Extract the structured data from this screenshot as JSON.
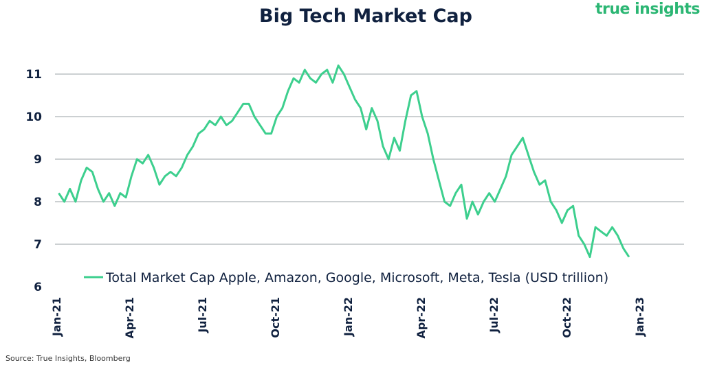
{
  "header": {
    "title": "Big Tech Market Cap",
    "logo_text": "true insights"
  },
  "footer": {
    "source": "Source: True Insights, Bloomberg"
  },
  "colors": {
    "line": "#3dcf8e",
    "grid": "#9aa0a6",
    "text": "#10213f",
    "logo": "#2bb673"
  },
  "chart_data": {
    "type": "line",
    "title": "Big Tech Market Cap",
    "xlabel": "",
    "ylabel": "",
    "ylim": [
      6,
      11.5
    ],
    "yticks": [
      6,
      7,
      8,
      9,
      10,
      11
    ],
    "xticks": [
      "Jan-21",
      "Apr-21",
      "Jul-21",
      "Oct-21",
      "Jan-22",
      "Apr-22",
      "Jul-22",
      "Oct-22",
      "Jan-23"
    ],
    "grid": "horizontal",
    "legend_position": "bottom-center",
    "series": [
      {
        "name": "Total Market Cap Apple, Amazon, Google, Microsoft, Meta, Tesla (USD trillion)",
        "x": [
          "2021-01-04",
          "2021-01-11",
          "2021-01-18",
          "2021-01-25",
          "2021-02-01",
          "2021-02-08",
          "2021-02-15",
          "2021-02-22",
          "2021-03-01",
          "2021-03-08",
          "2021-03-15",
          "2021-03-22",
          "2021-03-29",
          "2021-04-05",
          "2021-04-12",
          "2021-04-19",
          "2021-04-26",
          "2021-05-03",
          "2021-05-10",
          "2021-05-17",
          "2021-05-24",
          "2021-05-31",
          "2021-06-07",
          "2021-06-14",
          "2021-06-21",
          "2021-06-28",
          "2021-07-05",
          "2021-07-12",
          "2021-07-19",
          "2021-07-26",
          "2021-08-02",
          "2021-08-09",
          "2021-08-16",
          "2021-08-23",
          "2021-08-30",
          "2021-09-06",
          "2021-09-13",
          "2021-09-20",
          "2021-09-27",
          "2021-10-04",
          "2021-10-11",
          "2021-10-18",
          "2021-10-25",
          "2021-11-01",
          "2021-11-08",
          "2021-11-15",
          "2021-11-22",
          "2021-11-29",
          "2021-12-06",
          "2021-12-13",
          "2021-12-20",
          "2021-12-27",
          "2022-01-03",
          "2022-01-10",
          "2022-01-17",
          "2022-01-24",
          "2022-01-31",
          "2022-02-07",
          "2022-02-14",
          "2022-02-21",
          "2022-02-28",
          "2022-03-07",
          "2022-03-14",
          "2022-03-21",
          "2022-03-28",
          "2022-04-04",
          "2022-04-11",
          "2022-04-18",
          "2022-04-25",
          "2022-05-02",
          "2022-05-09",
          "2022-05-16",
          "2022-05-23",
          "2022-05-30",
          "2022-06-06",
          "2022-06-13",
          "2022-06-20",
          "2022-06-27",
          "2022-07-04",
          "2022-07-11",
          "2022-07-18",
          "2022-07-25",
          "2022-08-01",
          "2022-08-08",
          "2022-08-15",
          "2022-08-22",
          "2022-08-29",
          "2022-09-05",
          "2022-09-12",
          "2022-09-19",
          "2022-09-26",
          "2022-10-03",
          "2022-10-10",
          "2022-10-17",
          "2022-10-24",
          "2022-10-31",
          "2022-11-07",
          "2022-11-14",
          "2022-11-21",
          "2022-11-28",
          "2022-12-05",
          "2022-12-12",
          "2022-12-19"
        ],
        "values": [
          8.2,
          8.0,
          8.3,
          8.0,
          8.5,
          8.8,
          8.7,
          8.3,
          8.0,
          8.2,
          7.9,
          8.2,
          8.1,
          8.6,
          9.0,
          8.9,
          9.1,
          8.8,
          8.4,
          8.6,
          8.7,
          8.6,
          8.8,
          9.1,
          9.3,
          9.6,
          9.7,
          9.9,
          9.8,
          10.0,
          9.8,
          9.9,
          10.1,
          10.3,
          10.3,
          10.0,
          9.8,
          9.6,
          9.6,
          10.0,
          10.2,
          10.6,
          10.9,
          10.8,
          11.1,
          10.9,
          10.8,
          11.0,
          11.1,
          10.8,
          11.2,
          11.0,
          10.7,
          10.4,
          10.2,
          9.7,
          10.2,
          9.9,
          9.3,
          9.0,
          9.5,
          9.2,
          9.9,
          10.5,
          10.6,
          10.0,
          9.6,
          9.0,
          8.5,
          8.0,
          7.9,
          8.2,
          8.4,
          7.6,
          8.0,
          7.7,
          8.0,
          8.2,
          8.0,
          8.3,
          8.6,
          9.1,
          9.3,
          9.5,
          9.1,
          8.7,
          8.4,
          8.5,
          8.0,
          7.8,
          7.5,
          7.8,
          7.9,
          7.2,
          7.0,
          6.7,
          7.4,
          7.3,
          7.2,
          7.4,
          7.2,
          6.9,
          6.7
        ]
      }
    ]
  }
}
